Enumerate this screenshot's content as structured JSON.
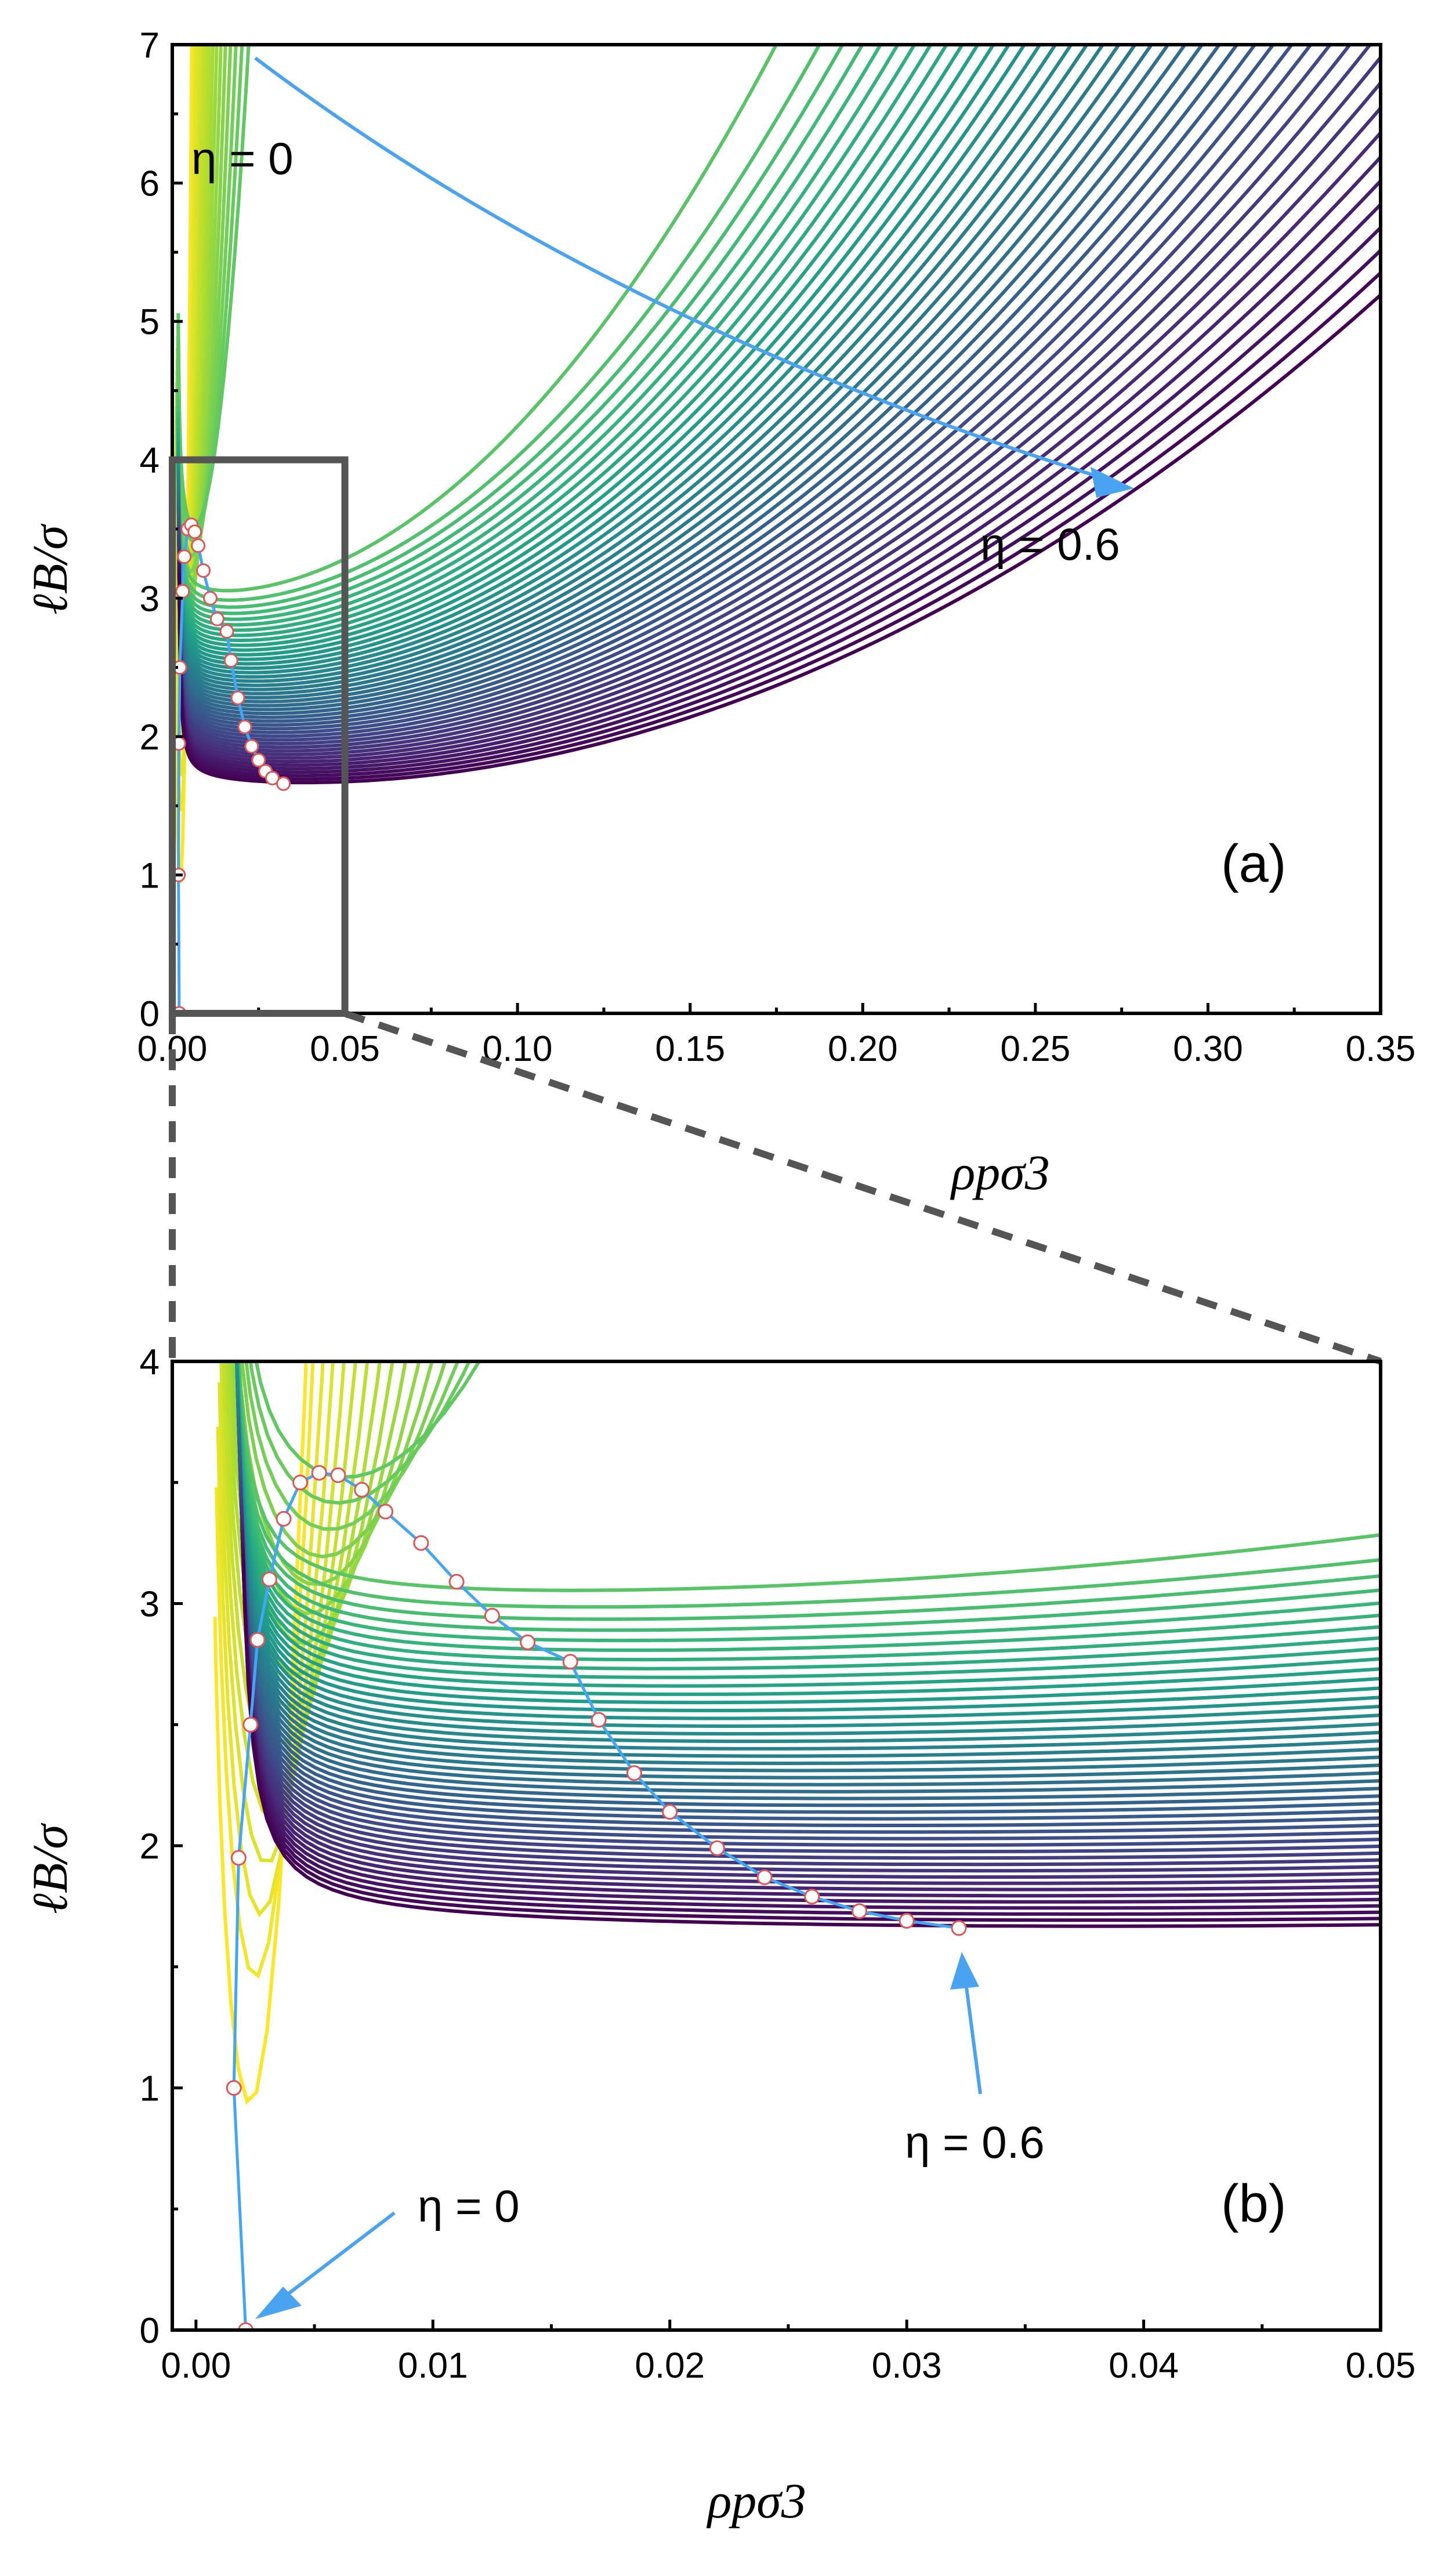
{
  "chart_data": [
    {
      "panel": "(a)",
      "type": "line",
      "xlabel": "ρpσ3",
      "ylabel": "ℓB/σ",
      "xlim": [
        0,
        0.35
      ],
      "ylim": [
        0,
        7
      ],
      "xticks": [
        "0.00",
        "0.05",
        "0.10",
        "0.15",
        "0.20",
        "0.25",
        "0.30",
        "0.35"
      ],
      "yticks": [
        "0",
        "1",
        "2",
        "3",
        "4",
        "5",
        "6",
        "7"
      ],
      "annotations": [
        {
          "text": "η = 0",
          "meaning": "first curve of the family"
        },
        {
          "text": "η = 0.6",
          "meaning": "last curve of the family"
        }
      ],
      "inset_region": {
        "x": [
          0,
          0.05
        ],
        "y": [
          0,
          4
        ]
      },
      "series_family": {
        "name": "coexistence curves",
        "eta_from": 0,
        "eta_to": 0.6,
        "count": 61,
        "colormap": "viridis (η = 0 yellow → η = 0.6 purple)"
      },
      "critical_points": {
        "x": [
          0.002,
          0.0018,
          0.0019,
          0.0022,
          0.003,
          0.0035,
          0.0045,
          0.0055,
          0.0065,
          0.0075,
          0.009,
          0.011,
          0.013,
          0.0158,
          0.017,
          0.019,
          0.021,
          0.023,
          0.025,
          0.027,
          0.029,
          0.0322
        ],
        "y": [
          0,
          1.0,
          1.95,
          2.5,
          3.05,
          3.3,
          3.5,
          3.53,
          3.48,
          3.38,
          3.2,
          3.0,
          2.85,
          2.76,
          2.55,
          2.28,
          2.07,
          1.93,
          1.83,
          1.75,
          1.7,
          1.66
        ]
      }
    },
    {
      "panel": "(b)",
      "type": "line",
      "xlabel": "ρpσ3",
      "ylabel": "ℓB/σ",
      "xlim": [
        -0.001,
        0.05
      ],
      "ylim": [
        0,
        4
      ],
      "xticks": [
        "0.00",
        "0.01",
        "0.02",
        "0.03",
        "0.04",
        "0.05"
      ],
      "yticks": [
        "0",
        "1",
        "2",
        "3",
        "4"
      ],
      "annotations": [
        {
          "text": "η = 0",
          "meaning": "critical point of η = 0 curve",
          "points_to": [
            0.0021,
            0
          ]
        },
        {
          "text": "η = 0.6",
          "meaning": "critical point of η = 0.6 curve",
          "points_to": [
            0.0322,
            1.66
          ]
        }
      ],
      "series_family": {
        "name": "coexistence curves (zoom)",
        "eta_from": 0,
        "eta_to": 0.6,
        "count": 61,
        "colormap": "viridis"
      },
      "critical_points": {
        "x": [
          0.0021,
          0.0016,
          0.0018,
          0.0023,
          0.0026,
          0.0031,
          0.0037,
          0.0044,
          0.0052,
          0.006,
          0.007,
          0.008,
          0.0095,
          0.011,
          0.0125,
          0.014,
          0.0158,
          0.017,
          0.0185,
          0.02,
          0.022,
          0.024,
          0.026,
          0.028,
          0.03,
          0.0322
        ],
        "y": [
          0,
          1.0,
          1.95,
          2.5,
          2.85,
          3.1,
          3.35,
          3.5,
          3.54,
          3.53,
          3.47,
          3.38,
          3.25,
          3.09,
          2.95,
          2.84,
          2.76,
          2.52,
          2.3,
          2.14,
          1.99,
          1.87,
          1.79,
          1.73,
          1.69,
          1.66
        ]
      }
    }
  ]
}
